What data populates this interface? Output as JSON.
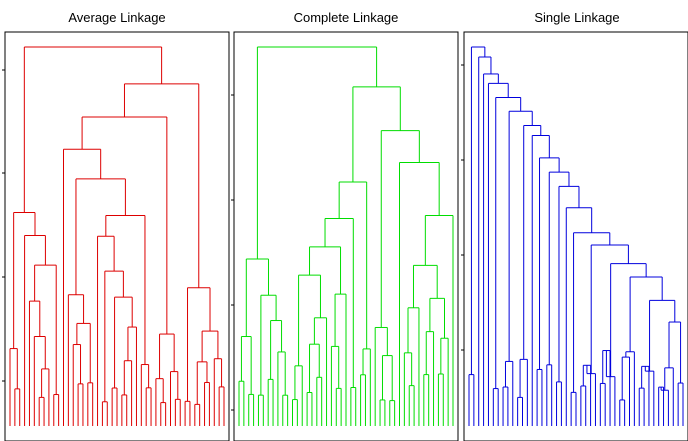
{
  "chart_data": [
    {
      "type": "dendrogram",
      "title": "Average Linkage",
      "color": "#dd0000",
      "leaf_count": 45,
      "xlabel": "",
      "ylabel": "",
      "grid": false,
      "legend": "none"
    },
    {
      "type": "dendrogram",
      "title": "Complete Linkage",
      "color": "#00dd00",
      "leaf_count": 45,
      "xlabel": "",
      "ylabel": "",
      "grid": false,
      "legend": "none"
    },
    {
      "type": "dendrogram",
      "title": "Single Linkage",
      "color": "#0000dd",
      "leaf_count": 45,
      "xlabel": "",
      "ylabel": "",
      "grid": false,
      "legend": "none"
    }
  ]
}
